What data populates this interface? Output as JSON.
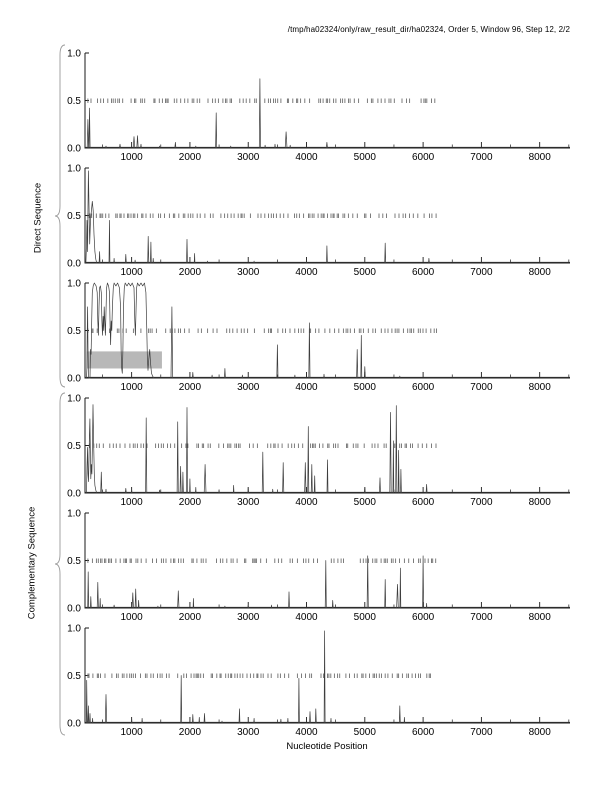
{
  "title": "/tmp/ha02324/only/raw_result_dir/ha02324, Order 5, Window 96, Step 12, 2/2",
  "group_labels": {
    "direct": "Direct Sequence",
    "complementary": "Complementary Sequence"
  },
  "xlabel": "Nucleotide Position",
  "colors": {
    "background": "#ffffff",
    "axis": "#1a1a1a",
    "curve": "#3d3d3d",
    "marker": "#6e6e6e",
    "highlight": "#b8b8b8",
    "brace": "#9a9a9a",
    "text": "#000000"
  },
  "chart_data": {
    "type": "line",
    "title": "/tmp/ha02324/only/raw_result_dir/ha02324, Order 5, Window 96, Step 12, 2/2",
    "xlabel": "Nucleotide Position",
    "ylabel_groups": [
      "Direct Sequence",
      "Complementary Sequence"
    ],
    "x_range": [
      200,
      8520
    ],
    "ylim": [
      0,
      1
    ],
    "x_ticks": [
      1000,
      2000,
      3000,
      4000,
      5000,
      6000,
      7000,
      8000
    ],
    "x_tick_labels": [
      "1000",
      "2000",
      "3000",
      "4000",
      "5000",
      "6000",
      "7000",
      "8000"
    ],
    "x_minor_step": 500,
    "y_ticks": [
      1.0,
      0.5,
      0.0
    ],
    "y_tick_labels": [
      "1.0",
      "0.5",
      "0.0"
    ],
    "grid": false,
    "marker_row": {
      "y": 0.5,
      "span": [
        250,
        6250
      ],
      "seeds": [
        11,
        22,
        33,
        44,
        55,
        66
      ],
      "gap_min": 18,
      "gap_max": 85,
      "draw_prob": 0.78
    },
    "panels": [
      {
        "name": "direct-frame-1",
        "group": "direct",
        "spikes": [
          [
            250,
            0.3,
            12
          ],
          [
            278,
            0.42,
            10
          ],
          [
            560,
            0.02,
            8
          ],
          [
            800,
            0.04,
            10
          ],
          [
            1040,
            0.12,
            14
          ],
          [
            1100,
            0.13,
            12
          ],
          [
            1160,
            0.04,
            8
          ],
          [
            1480,
            0.02,
            6
          ],
          [
            1750,
            0.06,
            10
          ],
          [
            2100,
            0.02,
            6
          ],
          [
            2450,
            0.37,
            10
          ],
          [
            2700,
            0.02,
            6
          ],
          [
            3200,
            0.73,
            10
          ],
          [
            3290,
            0.03,
            6
          ],
          [
            3460,
            0.04,
            6
          ],
          [
            3650,
            0.17,
            16
          ],
          [
            3720,
            0.03,
            6
          ],
          [
            4350,
            0.06,
            10
          ]
        ],
        "trace": []
      },
      {
        "name": "direct-frame-2",
        "group": "direct",
        "spikes": [
          [
            450,
            0.12,
            8
          ],
          [
            620,
            0.45,
            8
          ],
          [
            700,
            0.05,
            6
          ],
          [
            900,
            0.09,
            8
          ],
          [
            1060,
            0.03,
            6
          ],
          [
            1285,
            0.28,
            10
          ],
          [
            1330,
            0.22,
            8
          ],
          [
            1370,
            0.05,
            6
          ],
          [
            1950,
            0.25,
            8
          ],
          [
            2080,
            0.1,
            6
          ],
          [
            2300,
            0.02,
            5
          ],
          [
            3100,
            0.02,
            5
          ],
          [
            4000,
            0.03,
            5
          ],
          [
            4350,
            0.18,
            8
          ],
          [
            5350,
            0.21,
            8
          ],
          [
            6100,
            0.05,
            8
          ]
        ],
        "trace": [
          [
            215,
            0
          ],
          [
            225,
            0.2
          ],
          [
            235,
            0.45
          ],
          [
            245,
            0.12
          ],
          [
            252,
            0.6
          ],
          [
            258,
            0.97
          ],
          [
            268,
            0.6
          ],
          [
            280,
            0.2
          ],
          [
            295,
            0.45
          ],
          [
            310,
            0.55
          ],
          [
            325,
            0.65
          ],
          [
            340,
            0.55
          ],
          [
            355,
            0.3
          ],
          [
            370,
            0.12
          ],
          [
            385,
            0.04
          ],
          [
            400,
            0
          ]
        ]
      },
      {
        "name": "direct-frame-3",
        "group": "direct",
        "highlight": {
          "x0": 230,
          "x1": 1520,
          "y0": 0.1,
          "y1": 0.28
        },
        "spikes": [
          [
            1690,
            0.75,
            14
          ],
          [
            2050,
            0.06,
            8
          ],
          [
            2380,
            0.03,
            6
          ],
          [
            2600,
            0.1,
            8
          ],
          [
            2900,
            0.03,
            6
          ],
          [
            3500,
            0.35,
            10
          ],
          [
            3800,
            0.03,
            6
          ],
          [
            4050,
            0.58,
            10
          ],
          [
            4300,
            0.04,
            6
          ],
          [
            4870,
            0.3,
            10
          ],
          [
            4940,
            0.45,
            8
          ],
          [
            5000,
            0.12,
            8
          ],
          [
            5600,
            0.02,
            5
          ]
        ],
        "trace": [
          [
            225,
            0
          ],
          [
            232,
            0.1
          ],
          [
            238,
            0.45
          ],
          [
            244,
            0.75
          ],
          [
            252,
            0.3
          ],
          [
            258,
            0.05
          ],
          [
            265,
            0
          ],
          [
            285,
            0
          ],
          [
            295,
            0.3
          ],
          [
            305,
            0.25
          ],
          [
            315,
            0.6
          ],
          [
            325,
            0.9
          ],
          [
            340,
            0.97
          ],
          [
            360,
            1.0
          ],
          [
            390,
            0.97
          ],
          [
            410,
            0.9
          ],
          [
            420,
            0.6
          ],
          [
            430,
            0.45
          ],
          [
            440,
            0.75
          ],
          [
            450,
            0.95
          ],
          [
            465,
            0.97
          ],
          [
            480,
            0.9
          ],
          [
            490,
            0.6
          ],
          [
            500,
            0.45
          ],
          [
            510,
            0.65
          ],
          [
            520,
            0.5
          ],
          [
            530,
            0.75
          ],
          [
            540,
            0.6
          ],
          [
            550,
            0.45
          ],
          [
            560,
            0.7
          ],
          [
            570,
            0.95
          ],
          [
            585,
            1.0
          ],
          [
            605,
            0.97
          ],
          [
            620,
            0.9
          ],
          [
            630,
            0.55
          ],
          [
            640,
            0.35
          ],
          [
            650,
            0.6
          ],
          [
            660,
            0.5
          ],
          [
            670,
            0.75
          ],
          [
            685,
            0.95
          ],
          [
            700,
            1.0
          ],
          [
            730,
            0.97
          ],
          [
            760,
            1.0
          ],
          [
            790,
            0.95
          ],
          [
            810,
            0.75
          ],
          [
            820,
            0.3
          ],
          [
            830,
            0.1
          ],
          [
            840,
            0.05
          ],
          [
            850,
            0.3
          ],
          [
            860,
            0.75
          ],
          [
            875,
            0.95
          ],
          [
            890,
            1.0
          ],
          [
            920,
            0.97
          ],
          [
            950,
            1.0
          ],
          [
            980,
            0.97
          ],
          [
            1010,
            1.0
          ],
          [
            1040,
            0.95
          ],
          [
            1055,
            0.6
          ],
          [
            1065,
            0.45
          ],
          [
            1075,
            0.7
          ],
          [
            1085,
            0.95
          ],
          [
            1100,
            1.0
          ],
          [
            1130,
            0.97
          ],
          [
            1160,
            1.0
          ],
          [
            1190,
            0.97
          ],
          [
            1220,
            1.0
          ],
          [
            1245,
            0.9
          ],
          [
            1260,
            0.5
          ],
          [
            1270,
            0.2
          ],
          [
            1280,
            0.08
          ],
          [
            1295,
            0.2
          ],
          [
            1310,
            0.3
          ],
          [
            1325,
            0.15
          ],
          [
            1340,
            0.05
          ],
          [
            1360,
            0.02
          ],
          [
            1380,
            0
          ]
        ]
      },
      {
        "name": "complementary-frame-1",
        "group": "complementary",
        "spikes": [
          [
            480,
            0.22,
            10
          ],
          [
            560,
            0.04,
            6
          ],
          [
            900,
            0.05,
            8
          ],
          [
            1000,
            0.04,
            6
          ],
          [
            1250,
            0.79,
            10
          ],
          [
            1480,
            0.03,
            6
          ],
          [
            1790,
            0.75,
            10
          ],
          [
            1840,
            0.28,
            10
          ],
          [
            1880,
            0.22,
            8
          ],
          [
            1950,
            0.9,
            10
          ],
          [
            2000,
            0.15,
            6
          ],
          [
            2100,
            0.06,
            6
          ],
          [
            2260,
            0.3,
            16
          ],
          [
            2500,
            0.03,
            5
          ],
          [
            2750,
            0.08,
            6
          ],
          [
            3000,
            0.06,
            6
          ],
          [
            3250,
            0.43,
            10
          ],
          [
            3420,
            0.04,
            6
          ],
          [
            3600,
            0.32,
            10
          ],
          [
            3980,
            0.32,
            12
          ],
          [
            4030,
            0.7,
            10
          ],
          [
            4090,
            0.3,
            10
          ],
          [
            4140,
            0.18,
            8
          ],
          [
            4360,
            0.35,
            8
          ],
          [
            5000,
            0.06,
            8
          ],
          [
            5260,
            0.16,
            10
          ],
          [
            5440,
            0.85,
            12
          ],
          [
            5490,
            0.55,
            8
          ],
          [
            5540,
            0.92,
            10
          ],
          [
            5580,
            0.45,
            8
          ],
          [
            5620,
            0.25,
            8
          ],
          [
            6060,
            0.09,
            8
          ]
        ],
        "trace": [
          [
            225,
            0
          ],
          [
            235,
            0.28
          ],
          [
            245,
            0.48
          ],
          [
            252,
            0.2
          ],
          [
            260,
            0.12
          ],
          [
            268,
            0.35
          ],
          [
            276,
            0.6
          ],
          [
            284,
            0.78
          ],
          [
            292,
            0.4
          ],
          [
            300,
            0.15
          ],
          [
            308,
            0.3
          ],
          [
            318,
            0.2
          ],
          [
            328,
            0.55
          ],
          [
            338,
            0.93
          ],
          [
            350,
            0.5
          ],
          [
            360,
            0.2
          ],
          [
            370,
            0.08
          ],
          [
            385,
            0.03
          ],
          [
            400,
            0
          ]
        ]
      },
      {
        "name": "complementary-frame-2",
        "group": "complementary",
        "spikes": [
          [
            255,
            0.38,
            8
          ],
          [
            300,
            0.12,
            8
          ],
          [
            420,
            0.27,
            10
          ],
          [
            460,
            0.1,
            6
          ],
          [
            700,
            0.03,
            8
          ],
          [
            1020,
            0.16,
            12
          ],
          [
            1070,
            0.2,
            10
          ],
          [
            1120,
            0.08,
            8
          ],
          [
            1450,
            0.02,
            5
          ],
          [
            1800,
            0.18,
            12
          ],
          [
            2060,
            0.1,
            6
          ],
          [
            2600,
            0.02,
            5
          ],
          [
            3000,
            0.03,
            5
          ],
          [
            3400,
            0.03,
            5
          ],
          [
            3700,
            0.17,
            8
          ],
          [
            4330,
            0.5,
            10
          ],
          [
            4450,
            0.08,
            8
          ],
          [
            5050,
            0.55,
            10
          ],
          [
            5350,
            0.3,
            8
          ],
          [
            5560,
            0.25,
            14
          ],
          [
            5610,
            0.42,
            8
          ],
          [
            6000,
            0.55,
            8
          ],
          [
            6060,
            0.05,
            5
          ]
        ],
        "trace": []
      },
      {
        "name": "complementary-frame-3",
        "group": "complementary",
        "spikes": [
          [
            230,
            0.45,
            8
          ],
          [
            258,
            0.18,
            8
          ],
          [
            285,
            0.1,
            8
          ],
          [
            330,
            0.05,
            6
          ],
          [
            560,
            0.3,
            12
          ],
          [
            1000,
            0.05,
            6
          ],
          [
            1180,
            0.05,
            6
          ],
          [
            1850,
            0.5,
            8
          ],
          [
            2050,
            0.09,
            8
          ],
          [
            2160,
            0.06,
            6
          ],
          [
            2250,
            0.1,
            8
          ],
          [
            2550,
            0.02,
            5
          ],
          [
            2850,
            0.15,
            8
          ],
          [
            3100,
            0.05,
            6
          ],
          [
            3560,
            0.04,
            6
          ],
          [
            3680,
            0.05,
            6
          ],
          [
            3870,
            0.47,
            8
          ],
          [
            4060,
            0.12,
            8
          ],
          [
            4160,
            0.15,
            8
          ],
          [
            4310,
            0.97,
            9
          ],
          [
            4420,
            0.05,
            6
          ],
          [
            5600,
            0.18,
            8
          ],
          [
            5680,
            0.06,
            6
          ]
        ],
        "trace": []
      }
    ]
  }
}
